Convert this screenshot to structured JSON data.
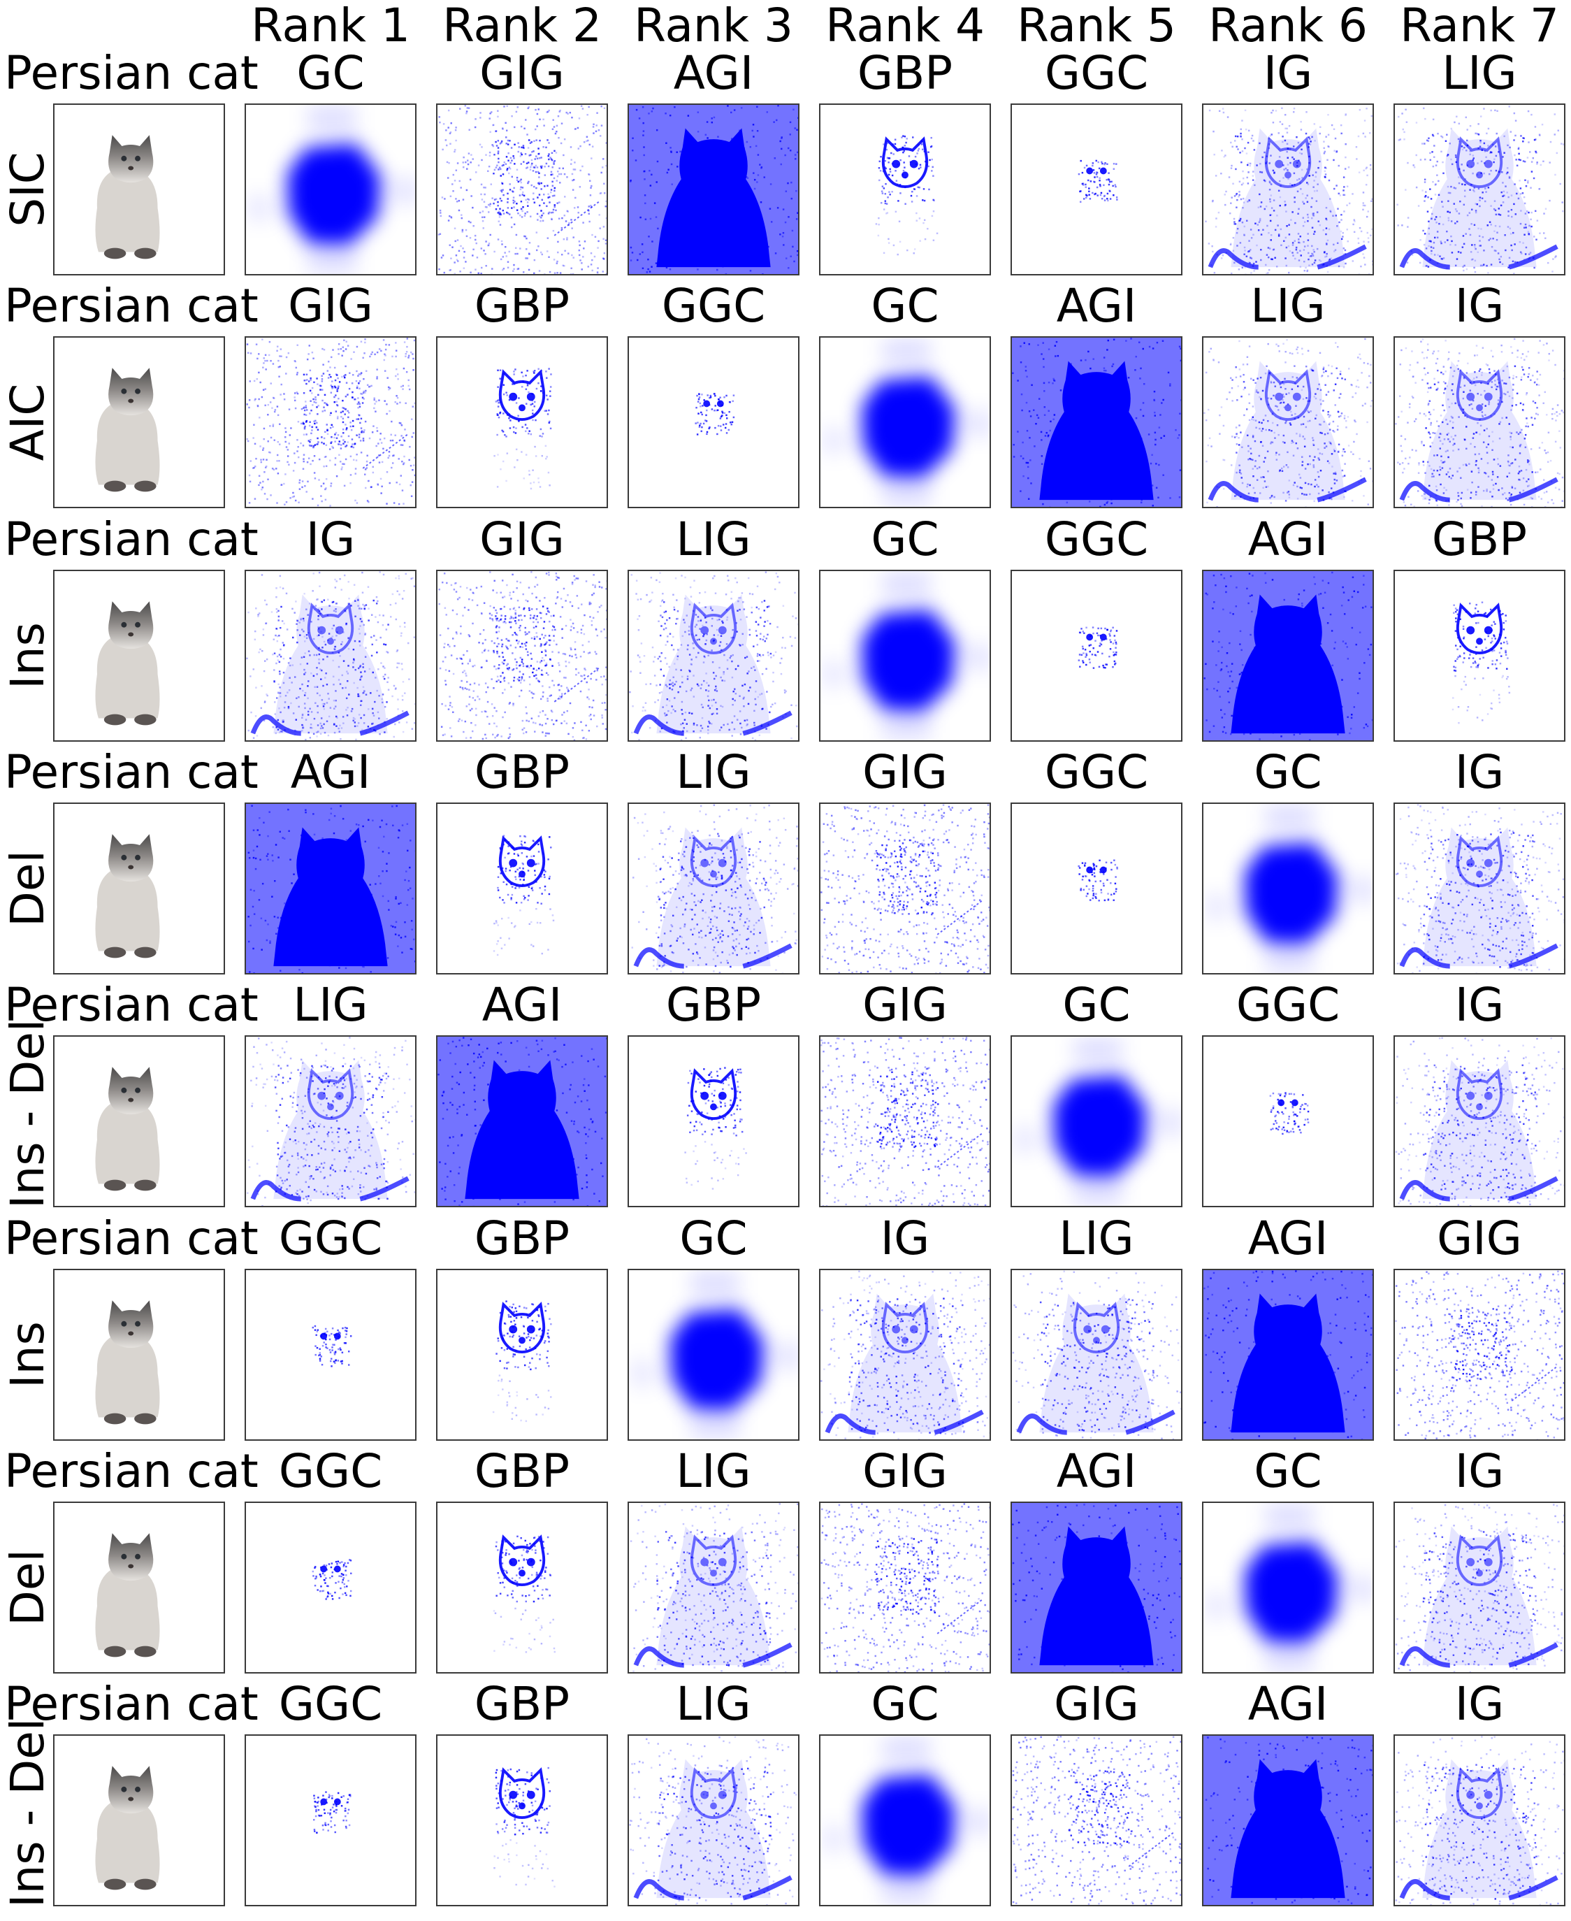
{
  "column_headers": [
    "Rank 1",
    "Rank 2",
    "Rank 3",
    "Rank 4",
    "Rank 5",
    "Rank 6",
    "Rank 7"
  ],
  "heatmap_color": "#0000ff",
  "rows": [
    {
      "class": "Persian cat",
      "metric": "SIC",
      "ranking": [
        "GC",
        "GIG",
        "AGI",
        "GBP",
        "GGC",
        "IG",
        "LIG"
      ]
    },
    {
      "class": "Persian cat",
      "metric": "AIC",
      "ranking": [
        "GIG",
        "GBP",
        "GGC",
        "GC",
        "AGI",
        "LIG",
        "IG"
      ]
    },
    {
      "class": "Persian cat",
      "metric": "Ins",
      "ranking": [
        "IG",
        "GIG",
        "LIG",
        "GC",
        "GGC",
        "AGI",
        "GBP"
      ]
    },
    {
      "class": "Persian cat",
      "metric": "Del",
      "ranking": [
        "AGI",
        "GBP",
        "LIG",
        "GIG",
        "GGC",
        "GC",
        "IG"
      ]
    },
    {
      "class": "Persian cat",
      "metric": "Ins - Del",
      "ranking": [
        "LIG",
        "AGI",
        "GBP",
        "GIG",
        "GC",
        "GGC",
        "IG"
      ]
    },
    {
      "class": "Persian cat",
      "metric": "Ins",
      "ranking": [
        "GGC",
        "GBP",
        "GC",
        "IG",
        "LIG",
        "AGI",
        "GIG"
      ]
    },
    {
      "class": "Persian cat",
      "metric": "Del",
      "ranking": [
        "GGC",
        "GBP",
        "LIG",
        "GIG",
        "AGI",
        "GC",
        "IG"
      ]
    },
    {
      "class": "Persian cat",
      "metric": "Ins - Del",
      "ranking": [
        "GGC",
        "GBP",
        "LIG",
        "GC",
        "GIG",
        "AGI",
        "IG"
      ]
    }
  ]
}
